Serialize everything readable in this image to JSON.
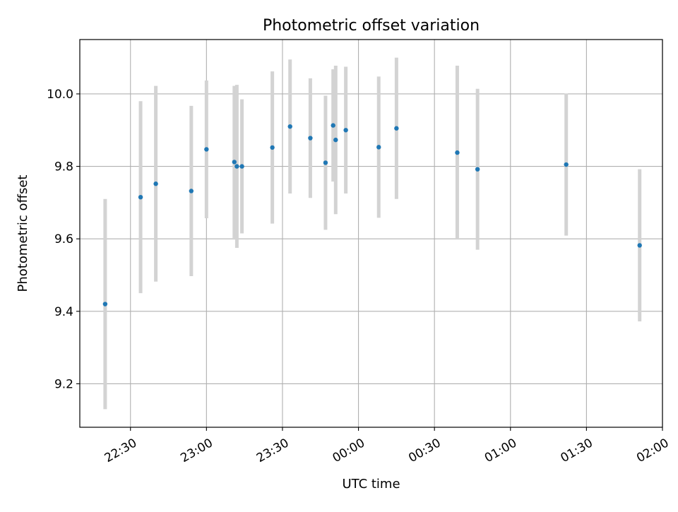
{
  "chart_data": {
    "type": "scatter",
    "title": "Photometric offset variation",
    "xlabel": "UTC time",
    "ylabel": "Photometric offset",
    "x_unit": "time",
    "xlim": [
      "22:10",
      "02:00"
    ],
    "ylim": [
      9.08,
      10.15
    ],
    "x_ticks": [
      "22:30",
      "23:00",
      "23:30",
      "00:00",
      "00:30",
      "01:00",
      "01:30",
      "02:00"
    ],
    "y_ticks": [
      9.2,
      9.4,
      9.6,
      9.8,
      10.0
    ],
    "grid": true,
    "colors": {
      "point": "#1f77b4",
      "errorbar": "#d3d3d3",
      "grid": "#b0b0b0",
      "axes": "#000000"
    },
    "points": [
      {
        "x": "22:20",
        "y": 9.42,
        "err": 0.29
      },
      {
        "x": "22:34",
        "y": 9.715,
        "err": 0.265
      },
      {
        "x": "22:40",
        "y": 9.752,
        "err": 0.27
      },
      {
        "x": "22:54",
        "y": 9.732,
        "err": 0.235
      },
      {
        "x": "23:00",
        "y": 9.847,
        "err": 0.19
      },
      {
        "x": "23:11",
        "y": 9.812,
        "err": 0.21
      },
      {
        "x": "23:12",
        "y": 9.8,
        "err": 0.225
      },
      {
        "x": "23:14",
        "y": 9.8,
        "err": 0.185
      },
      {
        "x": "23:26",
        "y": 9.852,
        "err": 0.21
      },
      {
        "x": "23:33",
        "y": 9.91,
        "err": 0.185
      },
      {
        "x": "23:41",
        "y": 9.878,
        "err": 0.165
      },
      {
        "x": "23:47",
        "y": 9.81,
        "err": 0.185
      },
      {
        "x": "23:50",
        "y": 9.913,
        "err": 0.155
      },
      {
        "x": "23:51",
        "y": 9.873,
        "err": 0.205
      },
      {
        "x": "23:55",
        "y": 9.9,
        "err": 0.175
      },
      {
        "x": "00:08",
        "y": 9.853,
        "err": 0.195
      },
      {
        "x": "00:15",
        "y": 9.905,
        "err": 0.195
      },
      {
        "x": "00:39",
        "y": 9.838,
        "err": 0.24
      },
      {
        "x": "00:47",
        "y": 9.792,
        "err": 0.222
      },
      {
        "x": "01:22",
        "y": 9.805,
        "err": 0.196
      },
      {
        "x": "01:51",
        "y": 9.582,
        "err": 0.21
      }
    ]
  }
}
